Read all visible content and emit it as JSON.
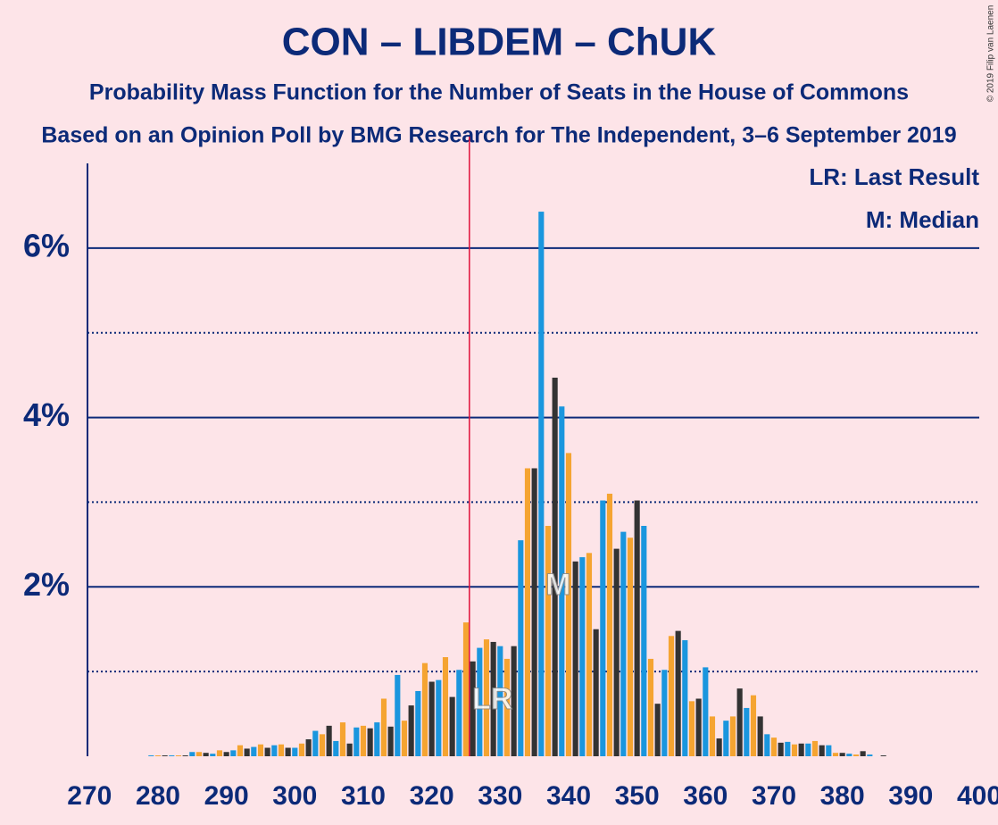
{
  "chart_data": {
    "type": "bar",
    "title": "CON – LIBDEM – ChUK",
    "subtitle": "Probability Mass Function for the Number of Seats in the House of Commons",
    "subtitle2": "Based on an Opinion Poll by BMG Research for The Independent, 3–6 September 2019",
    "copyright": "© 2019 Filip van Laenen",
    "legend": [
      "LR: Last Result",
      "M: Median"
    ],
    "last_result": 326,
    "last_result_label": "LR",
    "median": 339,
    "median_label": "M",
    "x": [
      270,
      271,
      272,
      273,
      274,
      275,
      276,
      277,
      278,
      279,
      280,
      281,
      282,
      283,
      284,
      285,
      286,
      287,
      288,
      289,
      290,
      291,
      292,
      293,
      294,
      295,
      296,
      297,
      298,
      299,
      300,
      301,
      302,
      303,
      304,
      305,
      306,
      307,
      308,
      309,
      310,
      311,
      312,
      313,
      314,
      315,
      316,
      317,
      318,
      319,
      320,
      321,
      322,
      323,
      324,
      325,
      326,
      327,
      328,
      329,
      330,
      331,
      332,
      333,
      334,
      335,
      336,
      337,
      338,
      339,
      340,
      341,
      342,
      343,
      344,
      345,
      346,
      347,
      348,
      349,
      350,
      351,
      352,
      353,
      354,
      355,
      356,
      357,
      358,
      359,
      360,
      361,
      362,
      363,
      364,
      365,
      366,
      367,
      368,
      369,
      370,
      371,
      372,
      373,
      374,
      375,
      376,
      377,
      378,
      379,
      380,
      381,
      382,
      383,
      384,
      385,
      386,
      387,
      388,
      389,
      390,
      391,
      392,
      393,
      394,
      395,
      396,
      397,
      398,
      399,
      400
    ],
    "values": [
      0,
      0,
      0,
      0,
      0,
      0,
      0,
      0,
      0,
      0.01,
      0.01,
      0.01,
      0.01,
      0.01,
      0.01,
      0.05,
      0.05,
      0.04,
      0.03,
      0.07,
      0.05,
      0.07,
      0.13,
      0.09,
      0.11,
      0.14,
      0.1,
      0.13,
      0.14,
      0.1,
      0.1,
      0.15,
      0.2,
      0.3,
      0.26,
      0.36,
      0.18,
      0.4,
      0.15,
      0.34,
      0.36,
      0.33,
      0.4,
      0.68,
      0.35,
      0.96,
      0.42,
      0.6,
      0.77,
      1.1,
      0.88,
      0.9,
      1.17,
      0.7,
      1.02,
      1.58,
      1.12,
      1.28,
      1.38,
      1.35,
      1.3,
      1.15,
      1.3,
      2.55,
      3.4,
      3.4,
      6.43,
      2.72,
      4.47,
      4.13,
      3.58,
      2.3,
      2.35,
      2.4,
      1.5,
      3.02,
      3.1,
      2.45,
      2.65,
      2.58,
      3.02,
      2.72,
      1.15,
      0.62,
      1.02,
      1.42,
      1.48,
      1.37,
      0.65,
      0.68,
      1.05,
      0.47,
      0.21,
      0.42,
      0.47,
      0.8,
      0.57,
      0.72,
      0.47,
      0.26,
      0.22,
      0.16,
      0.17,
      0.14,
      0.15,
      0.15,
      0.18,
      0.13,
      0.13,
      0.04,
      0.04,
      0.03,
      0.02,
      0.06,
      0.02,
      0,
      0.01,
      0,
      0,
      0,
      0,
      0,
      0,
      0,
      0,
      0,
      0,
      0,
      0,
      0,
      0
    ],
    "colors": [
      "#1a96de",
      "#f5a431",
      "#333333"
    ],
    "xlim": [
      269.7,
      400
    ],
    "xticks": [
      270,
      280,
      290,
      300,
      310,
      320,
      330,
      340,
      350,
      360,
      370,
      380,
      390,
      400
    ],
    "ylim": [
      0,
      7
    ],
    "yticks": [
      {
        "value": 2,
        "label": "2%"
      },
      {
        "value": 4,
        "label": "4%"
      },
      {
        "value": 6,
        "label": "6%"
      }
    ],
    "minor_grid": [
      1,
      3,
      5
    ],
    "grid": true
  }
}
